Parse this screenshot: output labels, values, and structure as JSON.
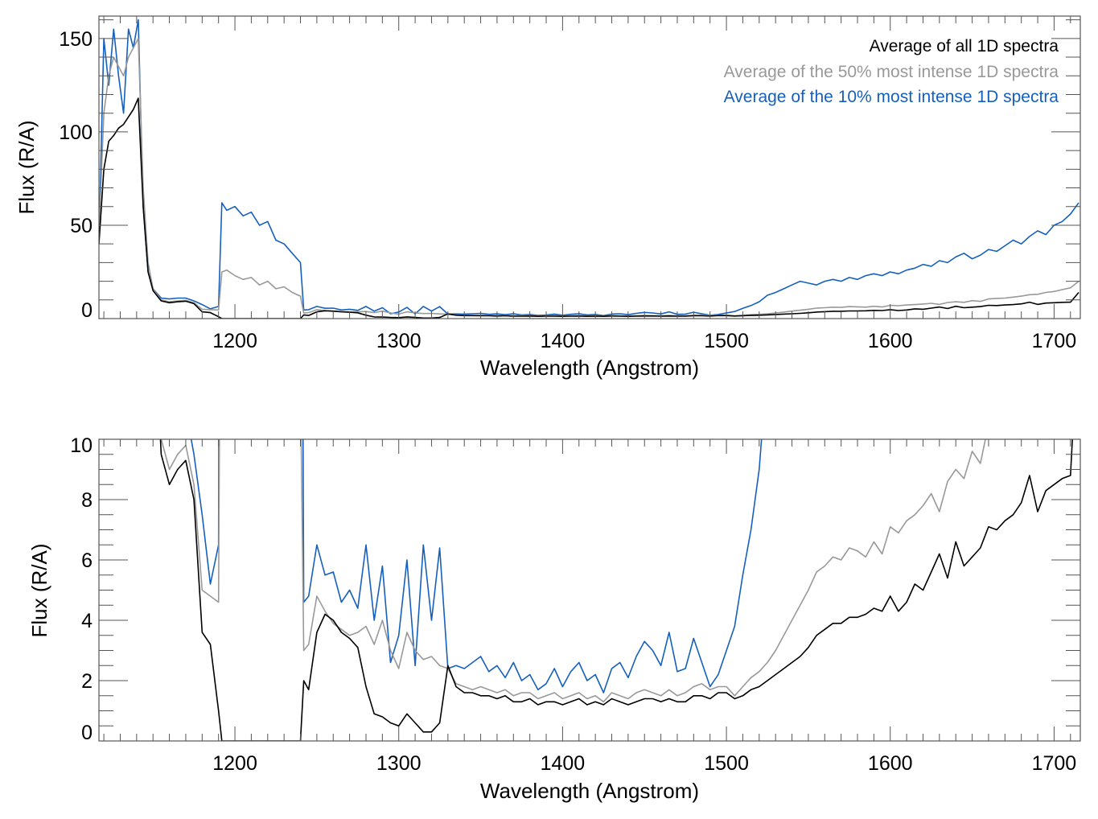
{
  "chart_data": [
    {
      "type": "line",
      "panel": "top",
      "title": "",
      "xlabel": "Wavelength (Angstrom)",
      "ylabel": "Flux (R/A)",
      "xlim": [
        1117,
        1716
      ],
      "ylim": [
        0,
        162
      ],
      "xticks": [
        1200,
        1300,
        1400,
        1500,
        1600,
        1700
      ],
      "yticks": [
        0,
        50,
        100,
        150
      ],
      "x_minor_step": 10,
      "y_minor_step": 10,
      "grid": false,
      "legend": {
        "placement": "top-right",
        "entries": [
          {
            "label": "Average of all 1D spectra",
            "color": "#000000"
          },
          {
            "label": "Average of the 50% most intense 1D spectra",
            "color": "#999999"
          },
          {
            "label": "Average of the 10% most intense 1D spectra",
            "color": "#1560bd"
          }
        ]
      }
    },
    {
      "type": "line",
      "panel": "bottom",
      "title": "",
      "xlabel": "Wavelength (Angstrom)",
      "ylabel": "Flux (R/A)",
      "xlim": [
        1117,
        1716
      ],
      "ylim": [
        0,
        10
      ],
      "xticks": [
        1200,
        1300,
        1400,
        1500,
        1600,
        1700
      ],
      "yticks": [
        0,
        2,
        4,
        6,
        8,
        10
      ],
      "x_minor_step": 10,
      "y_minor_step": 0.5,
      "grid": false
    }
  ],
  "series": {
    "x": [
      1117,
      1120,
      1123,
      1126,
      1129,
      1132,
      1135,
      1138,
      1141,
      1144,
      1147,
      1150,
      1155,
      1160,
      1165,
      1170,
      1175,
      1180,
      1185,
      1190,
      1192,
      1195,
      1200,
      1205,
      1210,
      1215,
      1220,
      1225,
      1230,
      1235,
      1240,
      1242,
      1245,
      1250,
      1255,
      1260,
      1265,
      1270,
      1275,
      1280,
      1285,
      1290,
      1295,
      1300,
      1305,
      1310,
      1315,
      1320,
      1325,
      1330,
      1335,
      1340,
      1345,
      1350,
      1355,
      1360,
      1365,
      1370,
      1375,
      1380,
      1385,
      1390,
      1395,
      1400,
      1405,
      1410,
      1415,
      1420,
      1425,
      1430,
      1435,
      1440,
      1445,
      1450,
      1455,
      1460,
      1465,
      1470,
      1475,
      1480,
      1485,
      1490,
      1495,
      1500,
      1505,
      1510,
      1515,
      1520,
      1525,
      1530,
      1535,
      1540,
      1545,
      1550,
      1555,
      1560,
      1565,
      1570,
      1575,
      1580,
      1585,
      1590,
      1595,
      1600,
      1605,
      1610,
      1615,
      1620,
      1625,
      1630,
      1635,
      1640,
      1645,
      1650,
      1655,
      1660,
      1665,
      1670,
      1675,
      1680,
      1685,
      1690,
      1695,
      1700,
      1705,
      1710,
      1715
    ],
    "all": [
      40,
      80,
      95,
      98,
      102,
      104,
      108,
      112,
      118,
      60,
      25,
      15,
      9.5,
      8.5,
      9.0,
      9.3,
      8.0,
      3.6,
      3.2,
      1.0,
      0.0,
      0.0,
      0.0,
      0.0,
      0.0,
      0.0,
      0.0,
      0.0,
      0.0,
      0.0,
      0.0,
      2.0,
      1.7,
      3.6,
      4.2,
      4.0,
      3.6,
      3.4,
      3.1,
      1.8,
      0.9,
      0.8,
      0.6,
      0.5,
      0.9,
      0.6,
      0.3,
      0.3,
      0.6,
      2.5,
      1.8,
      1.6,
      1.6,
      1.5,
      1.5,
      1.4,
      1.5,
      1.3,
      1.3,
      1.4,
      1.2,
      1.3,
      1.3,
      1.2,
      1.3,
      1.4,
      1.2,
      1.3,
      1.2,
      1.4,
      1.3,
      1.2,
      1.3,
      1.4,
      1.4,
      1.3,
      1.4,
      1.3,
      1.3,
      1.5,
      1.5,
      1.4,
      1.6,
      1.6,
      1.4,
      1.5,
      1.7,
      1.8,
      2.0,
      2.2,
      2.4,
      2.6,
      2.8,
      3.1,
      3.5,
      3.7,
      3.9,
      3.9,
      4.1,
      4.1,
      4.2,
      4.4,
      4.3,
      4.8,
      4.3,
      4.6,
      5.2,
      5.0,
      5.6,
      6.2,
      5.4,
      6.6,
      5.8,
      6.1,
      6.4,
      7.1,
      7.0,
      7.3,
      7.5,
      7.9,
      8.8,
      7.6,
      8.3,
      8.5,
      8.7,
      8.8,
      14
    ],
    "half": [
      45,
      110,
      130,
      140,
      135,
      130,
      140,
      145,
      150,
      70,
      30,
      16,
      10.0,
      9.0,
      9.5,
      9.8,
      8.5,
      5.0,
      4.8,
      4.6,
      25,
      26,
      23,
      21,
      22,
      18,
      20,
      16,
      17,
      14,
      12,
      3.0,
      3.2,
      4.8,
      4.3,
      3.9,
      3.7,
      3.5,
      3.6,
      3.8,
      3.2,
      4.0,
      3.0,
      2.4,
      3.6,
      3.0,
      2.7,
      2.8,
      2.5,
      2.4,
      1.9,
      1.8,
      1.7,
      1.8,
      1.7,
      1.6,
      1.7,
      1.5,
      1.6,
      1.6,
      1.4,
      1.5,
      1.6,
      1.4,
      1.5,
      1.6,
      1.4,
      1.5,
      1.3,
      1.6,
      1.5,
      1.4,
      1.6,
      1.7,
      1.6,
      1.5,
      1.7,
      1.5,
      1.6,
      1.8,
      1.9,
      1.7,
      1.8,
      1.8,
      1.5,
      1.8,
      2.1,
      2.3,
      2.6,
      3.0,
      3.5,
      4.0,
      4.5,
      5.0,
      5.6,
      5.8,
      6.1,
      6.0,
      6.4,
      6.3,
      6.1,
      6.6,
      6.2,
      7.1,
      6.9,
      7.3,
      7.5,
      7.8,
      8.2,
      7.6,
      8.6,
      9.0,
      8.7,
      9.6,
      9.2,
      10.5,
      10.8,
      11.0,
      11.5,
      12.0,
      12.8,
      13.0,
      14.0,
      14.5,
      15.5,
      16.5,
      20
    ],
    "top10": [
      40,
      150,
      125,
      155,
      130,
      110,
      155,
      145,
      160,
      60,
      25,
      16,
      11,
      10.5,
      11,
      11,
      9.5,
      7.5,
      5.2,
      6.5,
      62,
      58,
      60,
      55,
      57,
      50,
      52,
      42,
      40,
      35,
      30,
      4.6,
      4.8,
      6.5,
      5.5,
      5.6,
      4.6,
      5.0,
      4.4,
      6.5,
      4.0,
      5.8,
      2.6,
      3.5,
      6.0,
      2.5,
      6.5,
      4.0,
      6.4,
      2.4,
      2.5,
      2.4,
      2.6,
      2.8,
      2.3,
      2.5,
      2.1,
      2.6,
      2.0,
      2.2,
      1.7,
      1.9,
      2.4,
      1.8,
      2.3,
      2.6,
      2.0,
      2.2,
      1.6,
      2.4,
      2.6,
      2.1,
      2.8,
      3.3,
      3.0,
      2.5,
      3.6,
      2.3,
      2.4,
      3.4,
      2.6,
      1.8,
      2.2,
      3.0,
      3.8,
      5.5,
      7.0,
      9.0,
      12.5,
      14,
      16,
      18,
      20,
      19,
      18,
      20,
      21,
      20,
      22,
      21,
      23,
      24,
      23,
      25,
      24,
      26,
      27,
      29,
      28,
      31,
      30,
      33,
      35,
      32,
      34,
      37,
      36,
      39,
      42,
      40,
      44,
      47,
      45,
      50,
      52,
      56,
      62
    ],
    "colors": {
      "all": "#000000",
      "half": "#999999",
      "top10": "#1560bd"
    }
  }
}
